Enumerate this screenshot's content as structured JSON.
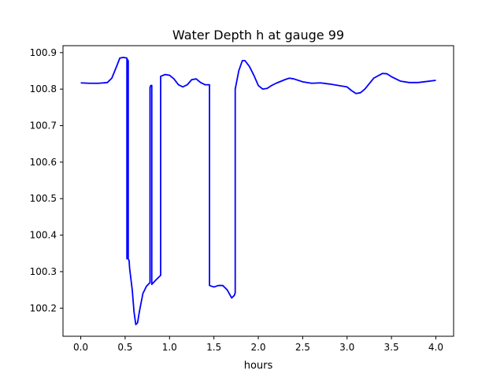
{
  "chart_data": {
    "type": "line",
    "title": "Water Depth h at gauge 99",
    "xlabel": "hours",
    "ylabel": "",
    "xlim": [
      -0.2,
      4.2
    ],
    "ylim": [
      100.123,
      100.919
    ],
    "grid": false,
    "xticks": [
      0.0,
      0.5,
      1.0,
      1.5,
      2.0,
      2.5,
      3.0,
      3.5,
      4.0
    ],
    "xtick_labels": [
      "0.0",
      "0.5",
      "1.0",
      "1.5",
      "2.0",
      "2.5",
      "3.0",
      "3.5",
      "4.0"
    ],
    "yticks": [
      100.2,
      100.3,
      100.4,
      100.5,
      100.6,
      100.7,
      100.8,
      100.9
    ],
    "ytick_labels": [
      "100.2",
      "100.3",
      "100.4",
      "100.5",
      "100.6",
      "100.7",
      "100.8",
      "100.9"
    ],
    "series": [
      {
        "color": "#0000ff",
        "x": [
          0.0,
          0.1,
          0.2,
          0.3,
          0.35,
          0.4,
          0.44,
          0.48,
          0.52,
          0.52,
          0.53,
          0.535,
          0.535,
          0.545,
          0.55,
          0.58,
          0.6,
          0.62,
          0.64,
          0.66,
          0.7,
          0.74,
          0.78,
          0.78,
          0.79,
          0.8,
          0.8,
          0.85,
          0.9,
          0.9,
          0.95,
          1.0,
          1.05,
          1.1,
          1.15,
          1.2,
          1.25,
          1.3,
          1.35,
          1.4,
          1.45,
          1.45,
          1.5,
          1.55,
          1.6,
          1.65,
          1.7,
          1.73,
          1.74,
          1.74,
          1.78,
          1.82,
          1.85,
          1.9,
          1.95,
          2.0,
          2.05,
          2.1,
          2.15,
          2.2,
          2.3,
          2.35,
          2.4,
          2.5,
          2.6,
          2.7,
          2.8,
          2.9,
          3.0,
          3.05,
          3.1,
          3.15,
          3.2,
          3.3,
          3.4,
          3.45,
          3.5,
          3.6,
          3.7,
          3.8,
          3.9,
          4.0
        ],
        "y": [
          100.817,
          100.816,
          100.816,
          100.818,
          100.83,
          100.86,
          100.885,
          100.887,
          100.885,
          100.335,
          100.88,
          100.877,
          100.335,
          100.33,
          100.31,
          100.25,
          100.19,
          100.155,
          100.16,
          100.19,
          100.24,
          100.26,
          100.27,
          100.805,
          100.81,
          100.81,
          100.265,
          100.278,
          100.29,
          100.835,
          100.84,
          100.838,
          100.828,
          100.812,
          100.806,
          100.812,
          100.826,
          100.828,
          100.818,
          100.812,
          100.812,
          100.262,
          100.258,
          100.262,
          100.262,
          100.25,
          100.228,
          100.235,
          100.242,
          100.8,
          100.85,
          100.878,
          100.878,
          100.862,
          100.838,
          100.81,
          100.8,
          100.802,
          100.81,
          100.816,
          100.826,
          100.83,
          100.828,
          100.82,
          100.816,
          100.817,
          100.814,
          100.81,
          100.806,
          100.796,
          100.788,
          100.79,
          100.8,
          100.83,
          100.843,
          100.842,
          100.834,
          100.822,
          100.818,
          100.818,
          100.821,
          100.824
        ]
      }
    ]
  }
}
